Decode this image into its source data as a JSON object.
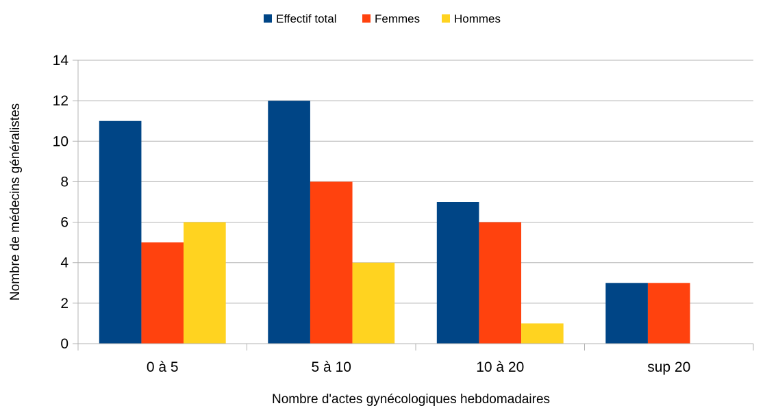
{
  "chart_data": {
    "type": "bar",
    "categories": [
      "0 à 5",
      "5 à 10",
      "10 à 20",
      "sup 20"
    ],
    "series": [
      {
        "name": "Effectif total",
        "color": "#004586",
        "values": [
          11,
          12,
          7,
          3
        ]
      },
      {
        "name": "Femmes",
        "color": "#ff420e",
        "values": [
          5,
          8,
          6,
          3
        ]
      },
      {
        "name": "Hommes",
        "color": "#ffd320",
        "values": [
          6,
          4,
          1,
          0
        ]
      }
    ],
    "xlabel": "Nombre d'actes gynécologiques hebdomadaires",
    "ylabel": "Nombre de médecins généralistes",
    "ylim": [
      0,
      14
    ],
    "yticks": [
      0,
      2,
      4,
      6,
      8,
      10,
      12,
      14
    ],
    "grid": true,
    "legend_position": "top-center"
  }
}
